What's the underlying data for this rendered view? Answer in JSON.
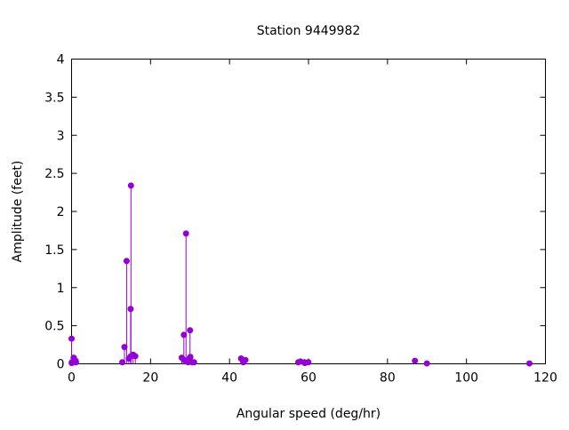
{
  "chart_data": {
    "type": "scatter",
    "style": "impulses-with-points",
    "title": "Station 9449982",
    "xlabel": "Angular speed (deg/hr)",
    "ylabel": "Amplitude (feet)",
    "xlim": [
      0,
      120
    ],
    "ylim": [
      0,
      4
    ],
    "xticks": [
      "0",
      "20",
      "40",
      "60",
      "80",
      "100",
      "120"
    ],
    "yticks": [
      "0",
      "0.5",
      "1",
      "1.5",
      "2",
      "2.5",
      "3",
      "3.5",
      "4"
    ],
    "grid": false,
    "color": "#9400d3",
    "points": [
      {
        "x": 0.0,
        "y": 0.33
      },
      {
        "x": 0.04,
        "y": 0.01
      },
      {
        "x": 0.08,
        "y": 0.02
      },
      {
        "x": 0.54,
        "y": 0.08
      },
      {
        "x": 1.02,
        "y": 0.04
      },
      {
        "x": 1.1,
        "y": 0.02
      },
      {
        "x": 12.85,
        "y": 0.02
      },
      {
        "x": 13.4,
        "y": 0.22
      },
      {
        "x": 13.94,
        "y": 1.35
      },
      {
        "x": 14.5,
        "y": 0.07
      },
      {
        "x": 14.96,
        "y": 0.72
      },
      {
        "x": 15.04,
        "y": 2.34
      },
      {
        "x": 15.59,
        "y": 0.12
      },
      {
        "x": 16.14,
        "y": 0.1
      },
      {
        "x": 15.0,
        "y": 0.1
      },
      {
        "x": 27.9,
        "y": 0.08
      },
      {
        "x": 28.44,
        "y": 0.38
      },
      {
        "x": 28.51,
        "y": 0.05
      },
      {
        "x": 28.98,
        "y": 1.71
      },
      {
        "x": 29.46,
        "y": 0.04
      },
      {
        "x": 29.53,
        "y": 0.02
      },
      {
        "x": 29.96,
        "y": 0.08
      },
      {
        "x": 30.0,
        "y": 0.44
      },
      {
        "x": 30.08,
        "y": 0.09
      },
      {
        "x": 30.55,
        "y": 0.02
      },
      {
        "x": 31.02,
        "y": 0.02
      },
      {
        "x": 42.93,
        "y": 0.07
      },
      {
        "x": 43.48,
        "y": 0.02
      },
      {
        "x": 44.03,
        "y": 0.05
      },
      {
        "x": 57.42,
        "y": 0.02
      },
      {
        "x": 57.97,
        "y": 0.03
      },
      {
        "x": 58.98,
        "y": 0.02
      },
      {
        "x": 59.07,
        "y": 0.01
      },
      {
        "x": 59.97,
        "y": 0.02
      },
      {
        "x": 86.95,
        "y": 0.04
      },
      {
        "x": 89.98,
        "y": 0.005
      },
      {
        "x": 115.94,
        "y": 0.005
      }
    ]
  }
}
